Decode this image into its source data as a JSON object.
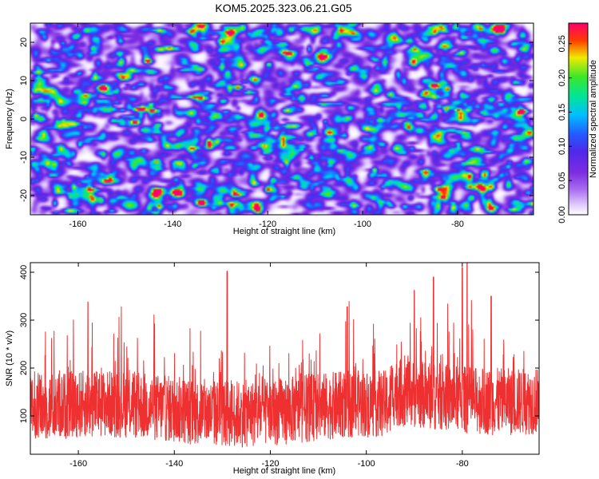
{
  "title": "KOM5.2025.323.06.21.G05",
  "chart_data": [
    {
      "type": "heatmap",
      "xlabel": "Height of straight line (km)",
      "ylabel": "Frequency (Hz)",
      "xlim": [
        -170,
        -64
      ],
      "ylim": [
        -25,
        25
      ],
      "x_ticks": [
        -160,
        -140,
        -120,
        -100,
        -80
      ],
      "y_ticks": [
        -20,
        -10,
        0,
        10,
        20
      ],
      "grid": false,
      "colorbar": {
        "label": "Normalized spectral amplitude",
        "range": [
          0.0,
          0.28
        ],
        "ticks": [
          0.0,
          0.05,
          0.1,
          0.15,
          0.2,
          0.25
        ],
        "tick_labels": [
          "0.00",
          "0.05",
          "0.10",
          "0.15",
          "0.20",
          "0.25"
        ],
        "colormap": "rainbow (white, violet, blue, cyan, green, yellow, red, magenta)"
      },
      "features": [
        {
          "x": -80,
          "y": 2.5,
          "value": 0.27
        },
        {
          "x": -78,
          "y": 2.5,
          "value": 0.22
        },
        {
          "x": -88,
          "y": 1.0,
          "value": 0.19
        },
        {
          "x": -90,
          "y": 0.5,
          "value": 0.16
        },
        {
          "x": -71,
          "y": 4.0,
          "value": 0.17
        },
        {
          "x": -76,
          "y": 3.5,
          "value": 0.15
        },
        {
          "x": -129,
          "y": 2.0,
          "value": 0.15
        },
        {
          "x": -108,
          "y": 18.0,
          "value": 0.14
        },
        {
          "x": -125,
          "y": 10.0,
          "value": 0.12
        },
        {
          "x": -160,
          "y": 8.0,
          "value": 0.12
        },
        {
          "x": -152,
          "y": 4.5,
          "value": 0.13
        },
        {
          "x": -120,
          "y": -10.0,
          "value": 0.11
        },
        {
          "x": -135,
          "y": -18.0,
          "value": 0.11
        },
        {
          "x": -95,
          "y": 0.0,
          "value": 0.13
        },
        {
          "x": -84,
          "y": 3.5,
          "value": 0.16
        }
      ]
    },
    {
      "type": "line",
      "xlabel": "Height of straight line (km)",
      "ylabel": "SNR (10 * v/v)",
      "xlim": [
        -170,
        -64
      ],
      "ylim": [
        20,
        420
      ],
      "x_ticks": [
        -160,
        -140,
        -120,
        -100,
        -80
      ],
      "y_ticks": [
        100,
        200,
        300,
        400
      ],
      "grid": false,
      "series": [
        {
          "color": "#ee3030",
          "baseline": 115,
          "peaks": [
            {
              "x": -158,
              "y": 338
            },
            {
              "x": -129,
              "y": 402
            },
            {
              "x": -104,
              "y": 328
            },
            {
              "x": -90,
              "y": 362
            },
            {
              "x": -80,
              "y": 410
            },
            {
              "x": -79,
              "y": 420
            },
            {
              "x": -74,
              "y": 350
            },
            {
              "x": -86,
              "y": 390
            }
          ]
        }
      ]
    }
  ]
}
